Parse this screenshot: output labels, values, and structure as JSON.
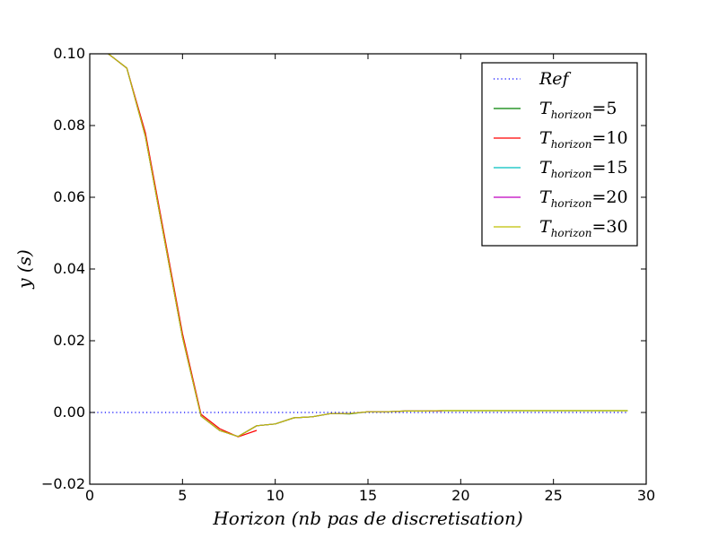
{
  "chart_data": {
    "type": "line",
    "xlabel": "Horizon (nb pas de discretisation)",
    "ylabel": "y (s)",
    "xlim": [
      0,
      30
    ],
    "ylim": [
      -0.02,
      0.1
    ],
    "xticks": [
      0,
      5,
      10,
      15,
      20,
      25,
      30
    ],
    "xtick_labels": [
      "0",
      "5",
      "10",
      "15",
      "20",
      "25",
      "30"
    ],
    "yticks": [
      -0.02,
      0.0,
      0.02,
      0.04,
      0.06,
      0.08,
      0.1
    ],
    "ytick_labels": [
      "−0.02",
      "0.00",
      "0.02",
      "0.04",
      "0.06",
      "0.08",
      "0.10"
    ],
    "grid": false,
    "legend_position": "top-right",
    "series": [
      {
        "name": "Ref",
        "legend": {
          "base": "Ref",
          "sub": "",
          "eq": ""
        },
        "color": "#0000ff",
        "style": "dotted",
        "x": [
          0,
          29
        ],
        "y": [
          0.0,
          0.0
        ]
      },
      {
        "name": "T_horizon=5",
        "legend": {
          "base": "T",
          "sub": "horizon",
          "eq": "=5"
        },
        "color": "#008000",
        "style": "solid",
        "x": [
          1,
          2,
          3,
          4,
          5,
          6,
          7,
          8,
          9,
          10,
          11,
          12,
          13,
          14,
          15,
          16,
          17,
          18,
          19,
          20,
          21,
          22,
          23,
          24,
          25,
          26,
          27,
          28,
          29
        ],
        "y": [
          0.1,
          0.096,
          0.077,
          0.049,
          0.021,
          -0.001,
          -0.005,
          -0.0067,
          -0.0037,
          -0.0032,
          -0.0015,
          -0.0012,
          -0.0003,
          -0.0004,
          0.0002,
          0.0002,
          0.0004,
          0.0004,
          0.0005,
          0.0005,
          0.0005,
          0.0005,
          0.0005,
          0.0005,
          0.0005,
          0.0005,
          0.0005,
          0.0005,
          0.0005
        ]
      },
      {
        "name": "T_horizon=10",
        "legend": {
          "base": "T",
          "sub": "horizon",
          "eq": "=10"
        },
        "color": "#ff0000",
        "style": "solid",
        "x": [
          1,
          2,
          3,
          4,
          5,
          6,
          7,
          8,
          9
        ],
        "y": [
          0.1,
          0.096,
          0.078,
          0.05,
          0.022,
          -0.0005,
          -0.0045,
          -0.0068,
          -0.005
        ]
      },
      {
        "name": "T_horizon=15",
        "legend": {
          "base": "T",
          "sub": "horizon",
          "eq": "=15"
        },
        "color": "#00bfbf",
        "style": "solid",
        "x": [
          1,
          2,
          3,
          4,
          5,
          6,
          7,
          8,
          9,
          10,
          11,
          12,
          13,
          14
        ],
        "y": [
          0.1,
          0.096,
          0.077,
          0.049,
          0.021,
          -0.001,
          -0.005,
          -0.0067,
          -0.0037,
          -0.0032,
          -0.0015,
          -0.0012,
          -0.0003,
          -0.0003
        ]
      },
      {
        "name": "T_horizon=20",
        "legend": {
          "base": "T",
          "sub": "horizon",
          "eq": "=20"
        },
        "color": "#bf00bf",
        "style": "solid",
        "x": [
          1,
          2,
          3,
          4,
          5,
          6,
          7,
          8,
          9,
          10,
          11,
          12,
          13,
          14,
          15,
          16,
          17,
          18,
          19
        ],
        "y": [
          0.1,
          0.096,
          0.077,
          0.049,
          0.021,
          -0.001,
          -0.005,
          -0.0067,
          -0.0037,
          -0.0032,
          -0.0015,
          -0.0012,
          -0.0003,
          -0.0003,
          0.0002,
          0.0002,
          0.0004,
          0.0004,
          0.0004
        ]
      },
      {
        "name": "T_horizon=30",
        "legend": {
          "base": "T",
          "sub": "horizon",
          "eq": "=30"
        },
        "color": "#bfbf00",
        "style": "solid",
        "x": [
          1,
          2,
          3,
          4,
          5,
          6,
          7,
          8,
          9,
          10,
          11,
          12,
          13,
          14,
          15,
          16,
          17,
          18,
          19,
          20,
          21,
          22,
          23,
          24,
          25,
          26,
          27,
          28,
          29
        ],
        "y": [
          0.1,
          0.096,
          0.077,
          0.049,
          0.021,
          -0.001,
          -0.005,
          -0.0067,
          -0.0037,
          -0.0032,
          -0.0015,
          -0.0012,
          -0.0003,
          -0.0003,
          0.0002,
          0.0002,
          0.0004,
          0.0004,
          0.0005,
          0.0005,
          0.0005,
          0.0005,
          0.0005,
          0.0005,
          0.0005,
          0.0005,
          0.0005,
          0.0005,
          0.0005
        ]
      }
    ]
  }
}
